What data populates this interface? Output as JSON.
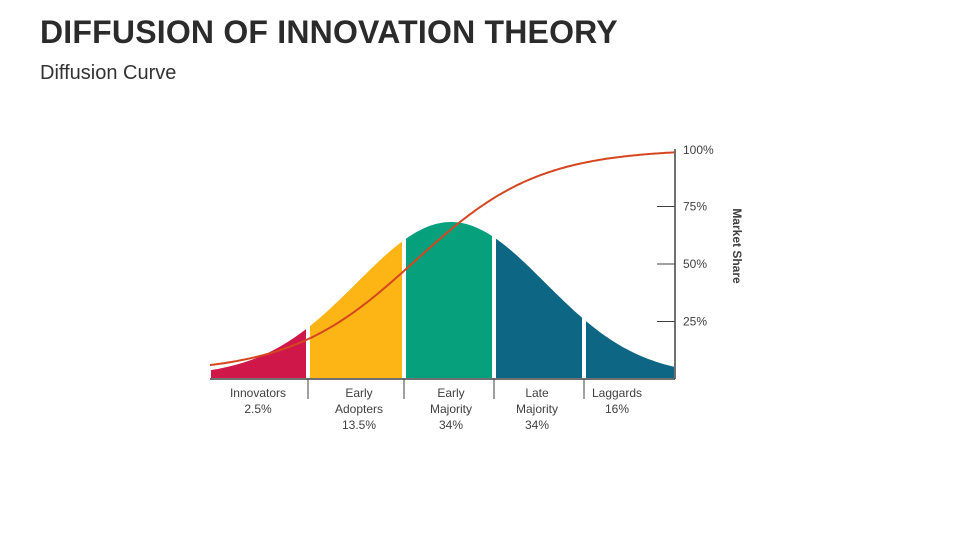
{
  "slide": {
    "title": "DIFFUSION OF INNOVATION THEORY",
    "subtitle": "Diffusion Curve"
  },
  "chart_data": {
    "type": "area",
    "ylabel": "Market Share",
    "y_ticks": [
      "100%",
      "75%",
      "50%",
      "25%"
    ],
    "y_tick_values": [
      100,
      75,
      50,
      25
    ],
    "ylim": [
      0,
      100
    ],
    "categories": [
      {
        "lines": [
          "Innovators",
          "2.5%"
        ],
        "share": 2.5,
        "color": "#d0174a"
      },
      {
        "lines": [
          "Early",
          "Adopters",
          "13.5%"
        ],
        "share": 13.5,
        "color": "#fdb515"
      },
      {
        "lines": [
          "Early",
          "Majority",
          "34%"
        ],
        "share": 34,
        "color": "#06a07c"
      },
      {
        "lines": [
          "Late",
          "Majority",
          "34%"
        ],
        "share": 34,
        "color": "#0d6684"
      },
      {
        "lines": [
          "Laggards",
          "16%"
        ],
        "share": 16,
        "color": "#0d6684"
      }
    ],
    "curves": [
      {
        "kind": "bell",
        "description_hidden": true
      },
      {
        "kind": "cumulative",
        "color": "#d4461f"
      }
    ],
    "grid": false,
    "legend": "none"
  }
}
